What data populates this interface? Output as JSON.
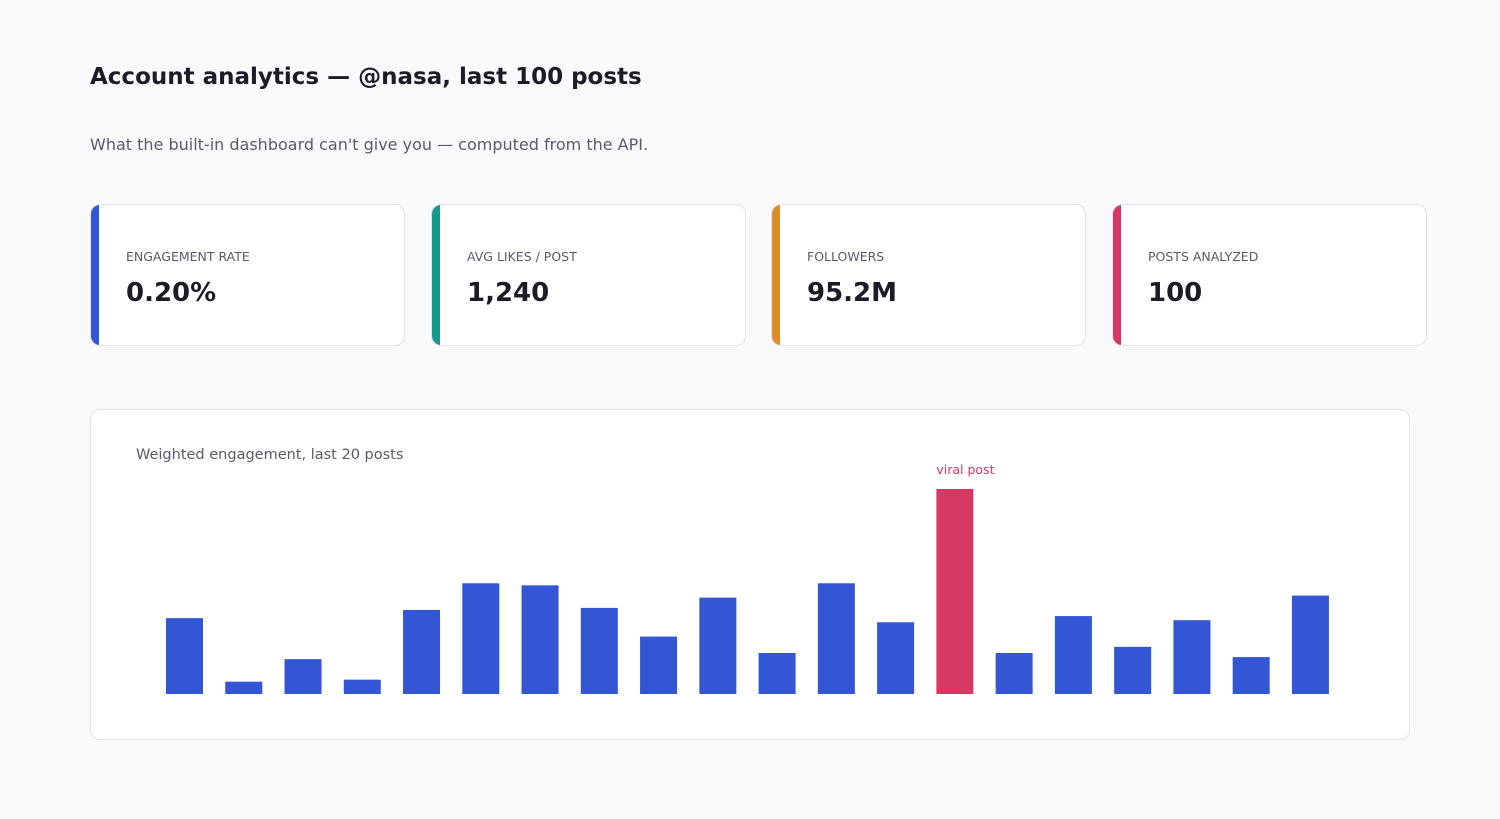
{
  "header": {
    "title": "Account analytics — @nasa, last 100 posts",
    "subtitle": "What the built-in dashboard can't give you — computed from the API."
  },
  "cards": [
    {
      "label": "ENGAGEMENT RATE",
      "value": "0.20%",
      "color": "#3256d4"
    },
    {
      "label": "AVG LIKES / POST",
      "value": "1,240",
      "color": "#149a8a"
    },
    {
      "label": "FOLLOWERS",
      "value": "95.2M",
      "color": "#dc8c28"
    },
    {
      "label": "POSTS ANALYZED",
      "value": "100",
      "color": "#d63864"
    }
  ],
  "chart_data": {
    "type": "bar",
    "title": "Weighted engagement, last 20 posts",
    "values": [
      37,
      6,
      17,
      7,
      41,
      54,
      53,
      42,
      28,
      47,
      20,
      54,
      35,
      100,
      20,
      38,
      23,
      36,
      18,
      48
    ],
    "color": "#3256d4",
    "highlight": {
      "index": 13,
      "label": "viral post",
      "color": "#d63864"
    }
  }
}
